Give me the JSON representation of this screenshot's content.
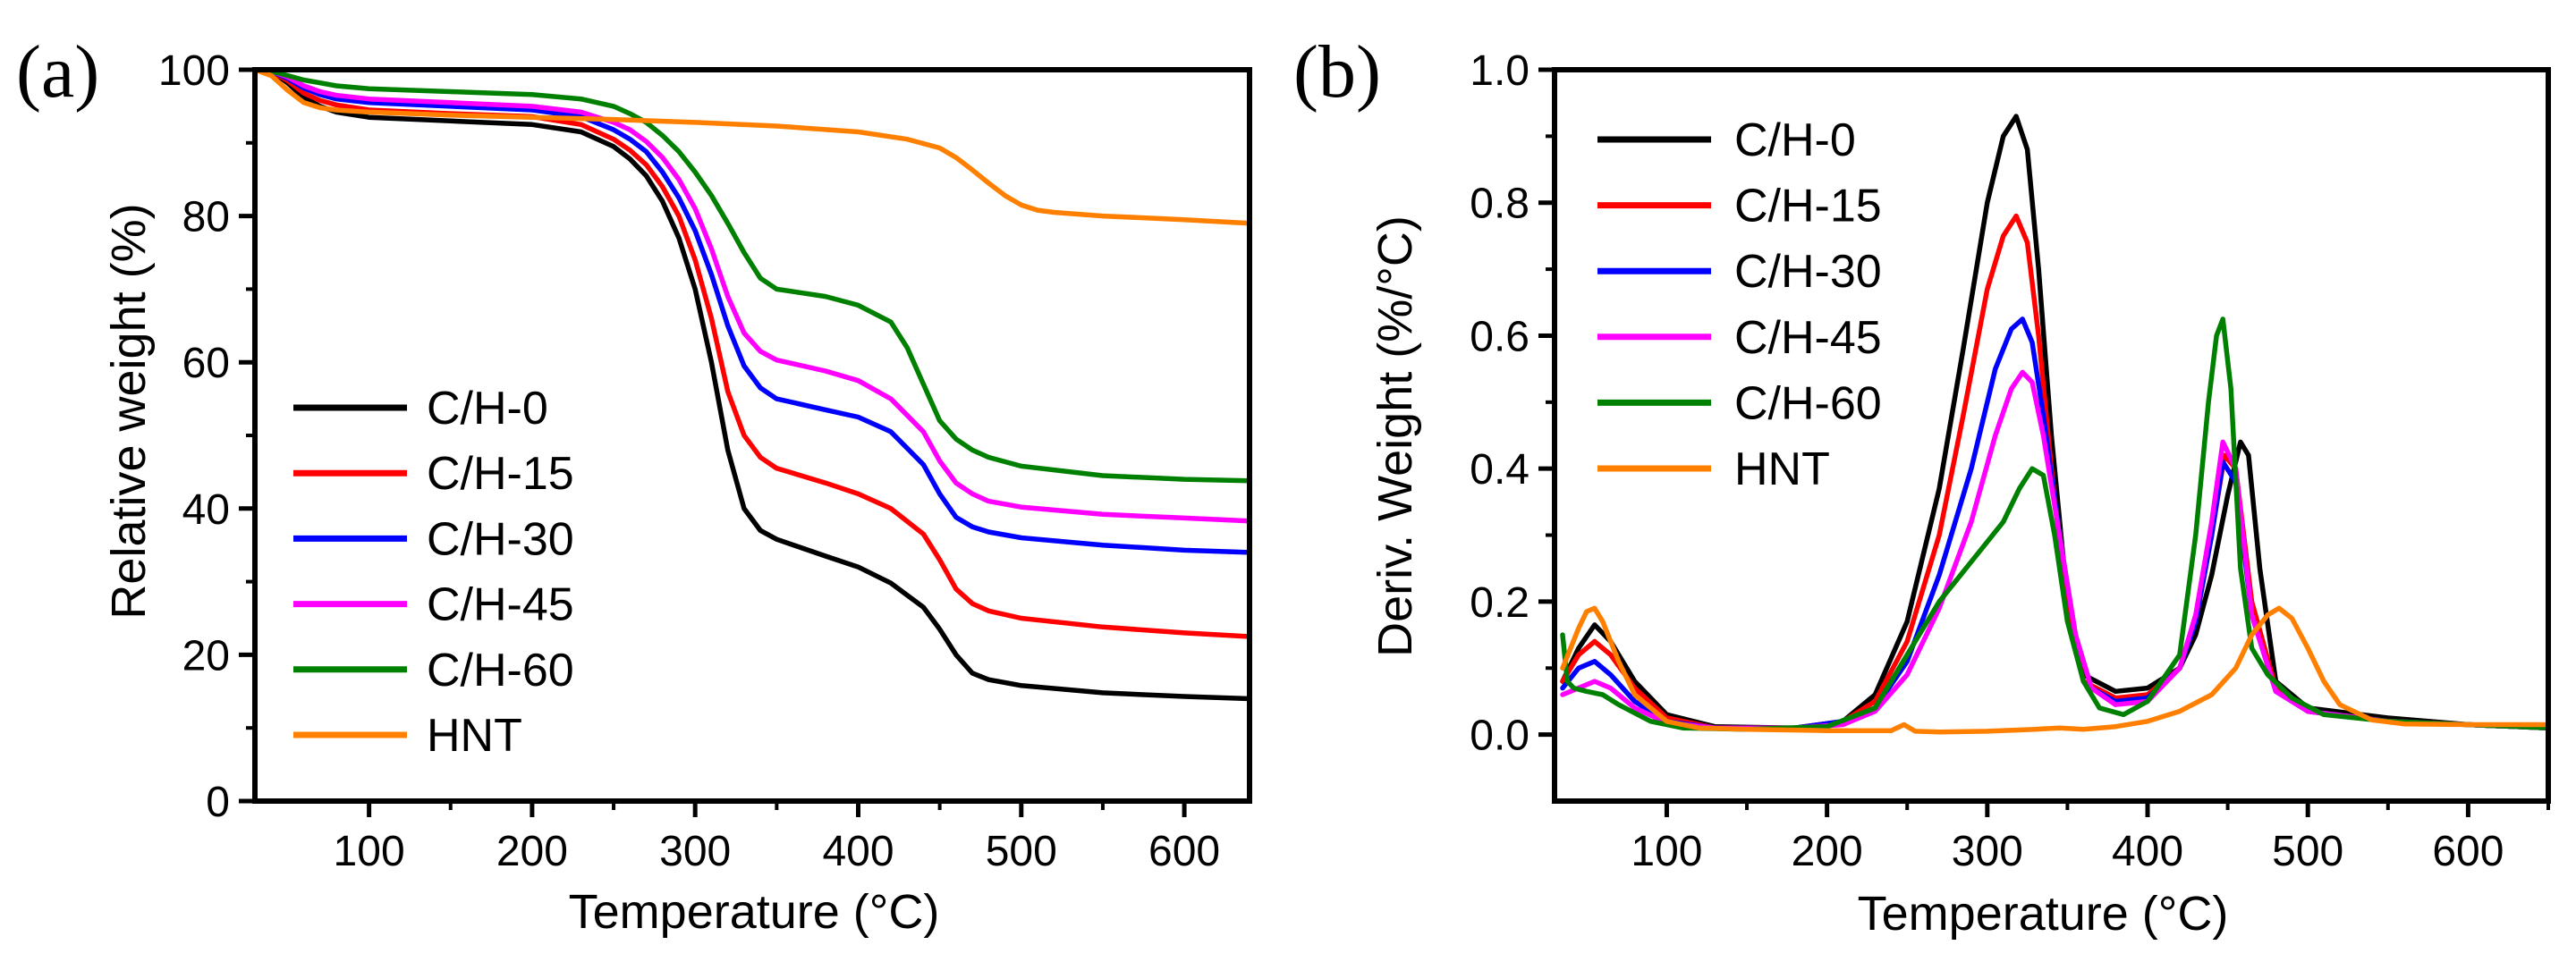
{
  "chart_data": [
    {
      "panel": "(a)",
      "type": "line",
      "title": "",
      "xlabel": "Temperature (°C)",
      "ylabel": "Relative weight (%)",
      "xlim": [
        30,
        640
      ],
      "ylim": [
        0,
        100
      ],
      "xticks": [
        100,
        200,
        300,
        400,
        500,
        600
      ],
      "yticks": [
        0,
        20,
        40,
        60,
        80,
        100
      ],
      "legend_position": "lower-left",
      "series": [
        {
          "name": "C/H-0",
          "color": "#000000",
          "x": [
            30,
            40,
            50,
            60,
            70,
            80,
            100,
            150,
            200,
            230,
            250,
            260,
            270,
            280,
            290,
            300,
            310,
            320,
            330,
            340,
            350,
            380,
            400,
            420,
            440,
            450,
            460,
            470,
            480,
            500,
            550,
            600,
            640
          ],
          "y": [
            100,
            99.8,
            98.2,
            96.2,
            95,
            94.2,
            93.5,
            93,
            92.5,
            91.5,
            89.5,
            87.8,
            85.5,
            82,
            77,
            70,
            60,
            48,
            40,
            37,
            35.8,
            33.5,
            32,
            29.8,
            26.5,
            23.5,
            20,
            17.5,
            16.6,
            15.8,
            14.8,
            14.3,
            14
          ]
        },
        {
          "name": "C/H-15",
          "color": "#ff0000",
          "x": [
            30,
            40,
            50,
            60,
            70,
            80,
            100,
            150,
            200,
            230,
            250,
            260,
            270,
            280,
            290,
            300,
            310,
            320,
            330,
            340,
            350,
            380,
            400,
            420,
            440,
            450,
            460,
            470,
            480,
            500,
            550,
            600,
            640
          ],
          "y": [
            100,
            99.8,
            98.5,
            96.8,
            95.8,
            95.2,
            94.5,
            94,
            93.6,
            92.5,
            90.5,
            89,
            87,
            84,
            80,
            74,
            66,
            56,
            50,
            47,
            45.5,
            43.5,
            42,
            40,
            36.5,
            33,
            29,
            27,
            26,
            25,
            23.8,
            23,
            22.5
          ]
        },
        {
          "name": "C/H-30",
          "color": "#0000ff",
          "x": [
            30,
            40,
            50,
            60,
            70,
            80,
            100,
            150,
            200,
            230,
            250,
            260,
            270,
            280,
            290,
            300,
            310,
            320,
            330,
            340,
            350,
            380,
            400,
            420,
            440,
            450,
            460,
            470,
            480,
            500,
            550,
            600,
            640
          ],
          "y": [
            100,
            99.8,
            98.8,
            97.5,
            96.6,
            96,
            95.5,
            95,
            94.5,
            93.6,
            91.8,
            90.5,
            88.8,
            86,
            82.5,
            78,
            72,
            65,
            59.5,
            56.5,
            55,
            53.5,
            52.5,
            50.5,
            46,
            42,
            38.8,
            37.5,
            36.8,
            36,
            35,
            34.3,
            34
          ]
        },
        {
          "name": "C/H-45",
          "color": "#ff00ff",
          "x": [
            30,
            40,
            50,
            60,
            70,
            80,
            100,
            150,
            200,
            230,
            250,
            260,
            270,
            280,
            290,
            300,
            310,
            320,
            330,
            340,
            350,
            380,
            400,
            420,
            440,
            450,
            460,
            470,
            480,
            500,
            550,
            600,
            640
          ],
          "y": [
            100,
            99.8,
            99,
            97.8,
            97,
            96.5,
            96,
            95.5,
            95,
            94.2,
            92.8,
            91.8,
            90.2,
            88,
            85,
            81,
            75.5,
            69,
            64,
            61.5,
            60.3,
            58.8,
            57.5,
            55,
            50.5,
            46.5,
            43.5,
            42,
            41,
            40.2,
            39.2,
            38.7,
            38.3
          ]
        },
        {
          "name": "C/H-60",
          "color": "#008000",
          "x": [
            30,
            40,
            50,
            60,
            70,
            80,
            100,
            150,
            200,
            230,
            250,
            260,
            270,
            280,
            290,
            300,
            310,
            320,
            330,
            340,
            350,
            380,
            400,
            420,
            430,
            440,
            450,
            460,
            470,
            480,
            500,
            550,
            600,
            640
          ],
          "y": [
            100,
            99.8,
            99.2,
            98.6,
            98.2,
            97.8,
            97.4,
            97,
            96.6,
            96,
            95,
            94,
            92.8,
            91,
            88.8,
            86,
            82.8,
            79,
            75,
            71.5,
            70,
            69,
            67.8,
            65.5,
            62,
            57,
            52,
            49.5,
            48,
            47,
            45.8,
            44.5,
            44,
            43.8
          ]
        },
        {
          "name": "HNT",
          "color": "#ff8000",
          "x": [
            30,
            40,
            50,
            60,
            70,
            80,
            100,
            150,
            200,
            250,
            300,
            350,
            400,
            430,
            450,
            460,
            470,
            480,
            490,
            500,
            510,
            520,
            550,
            600,
            640
          ],
          "y": [
            100,
            99.2,
            97.2,
            95.5,
            94.8,
            94.5,
            94.2,
            93.8,
            93.5,
            93.2,
            92.8,
            92.3,
            91.5,
            90.5,
            89.3,
            88,
            86.3,
            84.5,
            82.8,
            81.5,
            80.8,
            80.5,
            80,
            79.5,
            79
          ]
        }
      ]
    },
    {
      "panel": "(b)",
      "type": "line",
      "title": "",
      "xlabel": "Temperature (°C)",
      "ylabel": "Deriv. Weight (%/°C)",
      "xlim": [
        30,
        650
      ],
      "ylim": [
        -0.1,
        1.0
      ],
      "xticks": [
        100,
        200,
        300,
        400,
        500,
        600
      ],
      "yticks": [
        0.0,
        0.2,
        0.4,
        0.6,
        0.8,
        1.0
      ],
      "ytick_labels": [
        "0.0",
        "0.2",
        "0.4",
        "0.6",
        "0.8",
        "1.0"
      ],
      "legend_position": "top-left",
      "series": [
        {
          "name": "C/H-0",
          "color": "#000000",
          "x": [
            35,
            45,
            55,
            65,
            80,
            100,
            130,
            180,
            210,
            230,
            250,
            270,
            285,
            300,
            310,
            318,
            325,
            332,
            340,
            350,
            360,
            380,
            400,
            420,
            430,
            440,
            450,
            458,
            463,
            470,
            480,
            500,
            550,
            600,
            650
          ],
          "y": [
            0.08,
            0.13,
            0.165,
            0.14,
            0.08,
            0.03,
            0.012,
            0.01,
            0.02,
            0.06,
            0.17,
            0.37,
            0.58,
            0.8,
            0.9,
            0.93,
            0.88,
            0.7,
            0.45,
            0.2,
            0.09,
            0.065,
            0.07,
            0.1,
            0.15,
            0.24,
            0.36,
            0.44,
            0.42,
            0.25,
            0.08,
            0.04,
            0.025,
            0.015,
            0.01
          ]
        },
        {
          "name": "C/H-15",
          "color": "#ff0000",
          "x": [
            35,
            45,
            55,
            65,
            80,
            100,
            130,
            180,
            210,
            230,
            250,
            270,
            285,
            300,
            310,
            318,
            325,
            332,
            340,
            350,
            360,
            380,
            400,
            420,
            430,
            440,
            448,
            455,
            465,
            480,
            500,
            550,
            600,
            650
          ],
          "y": [
            0.08,
            0.12,
            0.14,
            0.12,
            0.07,
            0.025,
            0.01,
            0.01,
            0.02,
            0.05,
            0.14,
            0.3,
            0.48,
            0.67,
            0.75,
            0.78,
            0.74,
            0.6,
            0.4,
            0.18,
            0.08,
            0.055,
            0.06,
            0.1,
            0.17,
            0.3,
            0.42,
            0.4,
            0.2,
            0.07,
            0.035,
            0.02,
            0.015,
            0.01
          ]
        },
        {
          "name": "C/H-30",
          "color": "#0000ff",
          "x": [
            35,
            45,
            55,
            65,
            80,
            100,
            130,
            180,
            210,
            230,
            250,
            270,
            290,
            305,
            315,
            322,
            328,
            335,
            345,
            355,
            365,
            380,
            400,
            420,
            430,
            440,
            447,
            455,
            465,
            480,
            500,
            550,
            600,
            650
          ],
          "y": [
            0.07,
            0.1,
            0.11,
            0.09,
            0.05,
            0.02,
            0.01,
            0.01,
            0.02,
            0.04,
            0.11,
            0.24,
            0.4,
            0.55,
            0.61,
            0.625,
            0.59,
            0.48,
            0.3,
            0.15,
            0.07,
            0.05,
            0.055,
            0.1,
            0.17,
            0.3,
            0.41,
            0.38,
            0.18,
            0.065,
            0.035,
            0.02,
            0.015,
            0.01
          ]
        },
        {
          "name": "C/H-45",
          "color": "#ff00ff",
          "x": [
            35,
            45,
            55,
            65,
            80,
            100,
            130,
            180,
            210,
            230,
            250,
            270,
            290,
            305,
            315,
            322,
            328,
            335,
            345,
            355,
            365,
            380,
            400,
            420,
            430,
            440,
            447,
            455,
            465,
            480,
            500,
            550,
            600,
            650
          ],
          "y": [
            0.06,
            0.07,
            0.08,
            0.07,
            0.04,
            0.018,
            0.01,
            0.01,
            0.015,
            0.035,
            0.09,
            0.19,
            0.32,
            0.45,
            0.52,
            0.545,
            0.53,
            0.45,
            0.3,
            0.15,
            0.07,
            0.045,
            0.05,
            0.1,
            0.18,
            0.32,
            0.44,
            0.4,
            0.18,
            0.065,
            0.035,
            0.02,
            0.015,
            0.01
          ]
        },
        {
          "name": "C/H-60",
          "color": "#008000",
          "x": [
            35,
            38,
            42,
            50,
            60,
            70,
            90,
            110,
            150,
            200,
            230,
            250,
            270,
            290,
            310,
            320,
            328,
            335,
            342,
            350,
            360,
            370,
            385,
            400,
            420,
            430,
            438,
            443,
            447,
            452,
            458,
            465,
            475,
            490,
            510,
            550,
            600,
            650
          ],
          "y": [
            0.15,
            0.08,
            0.07,
            0.065,
            0.06,
            0.045,
            0.02,
            0.01,
            0.008,
            0.012,
            0.04,
            0.12,
            0.2,
            0.26,
            0.32,
            0.37,
            0.4,
            0.39,
            0.3,
            0.17,
            0.08,
            0.04,
            0.03,
            0.05,
            0.12,
            0.3,
            0.5,
            0.6,
            0.625,
            0.52,
            0.25,
            0.13,
            0.09,
            0.055,
            0.03,
            0.02,
            0.015,
            0.01
          ]
        },
        {
          "name": "HNT",
          "color": "#ff8000",
          "x": [
            35,
            45,
            50,
            55,
            60,
            70,
            80,
            100,
            120,
            150,
            200,
            240,
            248,
            255,
            270,
            300,
            330,
            345,
            360,
            380,
            400,
            420,
            440,
            455,
            465,
            475,
            482,
            490,
            500,
            510,
            520,
            540,
            560,
            600,
            650
          ],
          "y": [
            0.1,
            0.16,
            0.185,
            0.19,
            0.17,
            0.11,
            0.06,
            0.02,
            0.01,
            0.008,
            0.006,
            0.006,
            0.015,
            0.005,
            0.004,
            0.005,
            0.008,
            0.01,
            0.008,
            0.012,
            0.02,
            0.035,
            0.06,
            0.1,
            0.15,
            0.18,
            0.19,
            0.175,
            0.13,
            0.08,
            0.045,
            0.022,
            0.016,
            0.015,
            0.015
          ]
        }
      ]
    }
  ]
}
